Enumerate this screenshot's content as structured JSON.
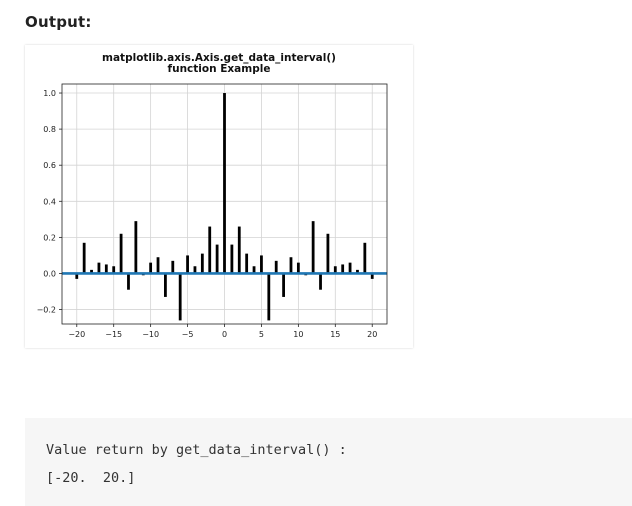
{
  "heading": "Output:",
  "chart_data": {
    "type": "bar",
    "title_line1": "matplotlib.axis.Axis.get_data_interval()",
    "title_line2": "function Example",
    "xlim": [
      -22,
      22
    ],
    "ylim": [
      -0.28,
      1.05
    ],
    "xticks": [
      -20,
      -15,
      -10,
      -5,
      0,
      5,
      10,
      15,
      20
    ],
    "xtick_labels": [
      "−20",
      "−15",
      "−10",
      "−5",
      "0",
      "5",
      "10",
      "15",
      "20"
    ],
    "yticks": [
      -0.2,
      0.0,
      0.2,
      0.4,
      0.6,
      0.8,
      1.0
    ],
    "ytick_labels": [
      "−0.2",
      "0.0",
      "0.2",
      "0.4",
      "0.6",
      "0.8",
      "1.0"
    ],
    "grid": true,
    "bar_color": "#000000",
    "baseline_color": "#1f77b4",
    "x": [
      -20,
      -19,
      -18,
      -17,
      -16,
      -15,
      -14,
      -13,
      -12,
      -11,
      -10,
      -9,
      -8,
      -7,
      -6,
      -5,
      -4,
      -3,
      -2,
      -1,
      0,
      1,
      2,
      3,
      4,
      5,
      6,
      7,
      8,
      9,
      10,
      11,
      12,
      13,
      14,
      15,
      16,
      17,
      18,
      19,
      20
    ],
    "values": [
      -0.03,
      0.17,
      0.02,
      0.06,
      0.05,
      0.04,
      0.22,
      -0.09,
      0.29,
      -0.01,
      0.06,
      0.09,
      -0.13,
      0.07,
      -0.26,
      0.1,
      0.04,
      0.11,
      0.26,
      0.16,
      1.0,
      0.16,
      0.26,
      0.11,
      0.04,
      0.1,
      -0.26,
      0.07,
      -0.13,
      0.09,
      0.06,
      -0.01,
      0.29,
      -0.09,
      0.22,
      0.04,
      0.05,
      0.06,
      0.02,
      0.17,
      -0.03
    ]
  },
  "output_block": {
    "line1": "Value return by get_data_interval() :",
    "line2": "[-20.  20.]"
  }
}
